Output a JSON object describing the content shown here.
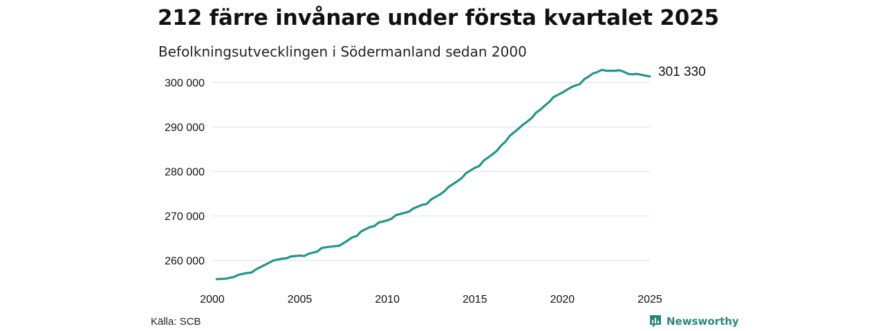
{
  "title": "212 färre invånare under första kvartalet 2025",
  "subtitle": "Befolkningsutvecklingen i Södermanland sedan 2000",
  "source": "Källa: SCB",
  "brand": {
    "name": "Newsworthy",
    "icon": "newsworthy-logo-icon",
    "color": "#27887a"
  },
  "chart_data": {
    "type": "line",
    "title": "212 färre invånare under första kvartalet 2025",
    "subtitle": "Befolkningsutvecklingen i Södermanland sedan 2000",
    "xlabel": "",
    "ylabel": "",
    "xlim": [
      2000,
      2025
    ],
    "ylim": [
      255000,
      303000
    ],
    "x_ticks": [
      2000,
      2005,
      2010,
      2015,
      2020,
      2025
    ],
    "y_ticks": [
      260000,
      270000,
      280000,
      290000,
      300000
    ],
    "x_tick_labels": [
      "2000",
      "2005",
      "2010",
      "2015",
      "2020",
      "2025"
    ],
    "y_tick_labels": [
      "260 000",
      "270 000",
      "280 000",
      "290 000",
      "300 000"
    ],
    "grid": "horizontal",
    "line_color": "#21968a",
    "end_label": "301 330",
    "series": [
      {
        "points": [
          [
            2000.25,
            255800
          ],
          [
            2000.75,
            255900
          ],
          [
            2001.25,
            256300
          ],
          [
            2001.5,
            256800
          ],
          [
            2002.0,
            257200
          ],
          [
            2002.25,
            257300
          ],
          [
            2002.5,
            258000
          ],
          [
            2003.0,
            259000
          ],
          [
            2003.5,
            260000
          ],
          [
            2004.0,
            260400
          ],
          [
            2004.25,
            260500
          ],
          [
            2004.5,
            260900
          ],
          [
            2005.0,
            261100
          ],
          [
            2005.25,
            261000
          ],
          [
            2005.5,
            261500
          ],
          [
            2006.0,
            262000
          ],
          [
            2006.25,
            262800
          ],
          [
            2006.75,
            263100
          ],
          [
            2007.25,
            263300
          ],
          [
            2007.75,
            264500
          ],
          [
            2008.0,
            265200
          ],
          [
            2008.25,
            265500
          ],
          [
            2008.5,
            266500
          ],
          [
            2009.0,
            267500
          ],
          [
            2009.25,
            267700
          ],
          [
            2009.5,
            268500
          ],
          [
            2010.0,
            269000
          ],
          [
            2010.25,
            269400
          ],
          [
            2010.5,
            270200
          ],
          [
            2011.0,
            270700
          ],
          [
            2011.25,
            271000
          ],
          [
            2011.5,
            271700
          ],
          [
            2012.0,
            272500
          ],
          [
            2012.25,
            272700
          ],
          [
            2012.5,
            273700
          ],
          [
            2013.0,
            274800
          ],
          [
            2013.25,
            275500
          ],
          [
            2013.5,
            276500
          ],
          [
            2014.0,
            277800
          ],
          [
            2014.25,
            278500
          ],
          [
            2014.5,
            279600
          ],
          [
            2015.0,
            280800
          ],
          [
            2015.25,
            281200
          ],
          [
            2015.5,
            282400
          ],
          [
            2016.0,
            283800
          ],
          [
            2016.25,
            284600
          ],
          [
            2016.5,
            285800
          ],
          [
            2016.75,
            286700
          ],
          [
            2017.0,
            288000
          ],
          [
            2017.5,
            289600
          ],
          [
            2017.75,
            290500
          ],
          [
            2018.0,
            291200
          ],
          [
            2018.25,
            292000
          ],
          [
            2018.5,
            293200
          ],
          [
            2018.75,
            293900
          ],
          [
            2019.0,
            294800
          ],
          [
            2019.25,
            295600
          ],
          [
            2019.5,
            296700
          ],
          [
            2019.75,
            297200
          ],
          [
            2020.0,
            297700
          ],
          [
            2020.25,
            298300
          ],
          [
            2020.5,
            298900
          ],
          [
            2020.75,
            299300
          ],
          [
            2021.0,
            299600
          ],
          [
            2021.25,
            300700
          ],
          [
            2021.5,
            301300
          ],
          [
            2021.75,
            302000
          ],
          [
            2022.0,
            302300
          ],
          [
            2022.25,
            302800
          ],
          [
            2022.5,
            302600
          ],
          [
            2022.75,
            302600
          ],
          [
            2023.0,
            302600
          ],
          [
            2023.25,
            302700
          ],
          [
            2023.5,
            302400
          ],
          [
            2023.75,
            301900
          ],
          [
            2024.0,
            301800
          ],
          [
            2024.25,
            301900
          ],
          [
            2024.5,
            301700
          ],
          [
            2024.75,
            301500
          ],
          [
            2025.0,
            301330
          ]
        ]
      }
    ]
  }
}
